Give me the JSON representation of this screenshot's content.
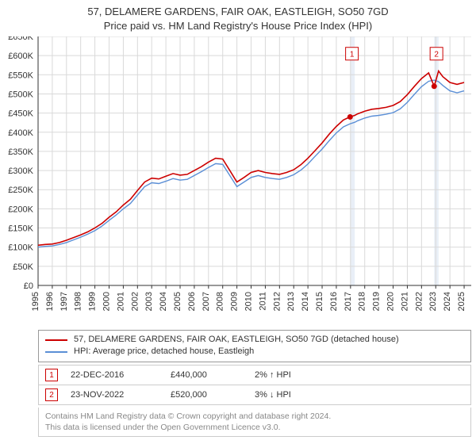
{
  "title_line1": "57, DELAMERE GARDENS, FAIR OAK, EASTLEIGH, SO50 7GD",
  "title_line2": "Price paid vs. HM Land Registry's House Price Index (HPI)",
  "chart": {
    "type": "line",
    "background_color": "#ffffff",
    "plot_background_color": "#ffffff",
    "grid_color": "#d9d9d9",
    "grid_on": true,
    "axis_line_color": "#333333",
    "x": {
      "lim": [
        1995,
        2025.5
      ],
      "ticks": [
        1995,
        1996,
        1997,
        1998,
        1999,
        2000,
        2001,
        2002,
        2003,
        2004,
        2005,
        2006,
        2007,
        2008,
        2009,
        2010,
        2011,
        2012,
        2013,
        2014,
        2015,
        2016,
        2017,
        2018,
        2019,
        2020,
        2021,
        2022,
        2023,
        2024,
        2025
      ],
      "tick_labels": [
        "1995",
        "1996",
        "1997",
        "1998",
        "1999",
        "2000",
        "2001",
        "2002",
        "2003",
        "2004",
        "2005",
        "2006",
        "2007",
        "2008",
        "2009",
        "2010",
        "2011",
        "2012",
        "2013",
        "2014",
        "2015",
        "2016",
        "2017",
        "2018",
        "2019",
        "2020",
        "2021",
        "2022",
        "2023",
        "2024",
        "2025"
      ],
      "tick_rotation": -90,
      "label_fontsize": 11
    },
    "y": {
      "lim": [
        0,
        650000
      ],
      "ticks": [
        0,
        50000,
        100000,
        150000,
        200000,
        250000,
        300000,
        350000,
        400000,
        450000,
        500000,
        550000,
        600000,
        650000
      ],
      "tick_labels": [
        "£0",
        "£50K",
        "£100K",
        "£150K",
        "£200K",
        "£250K",
        "£300K",
        "£350K",
        "£400K",
        "£450K",
        "£500K",
        "£550K",
        "£600K",
        "£650K"
      ],
      "label_fontsize": 11
    },
    "vbands": [
      {
        "from": 2016.97,
        "to": 2017.3,
        "color": "#e9eff7"
      },
      {
        "from": 2022.89,
        "to": 2023.2,
        "color": "#e9eff7"
      }
    ],
    "series": [
      {
        "name": "57, DELAMERE GARDENS, FAIR OAK, EASTLEIGH, SO50 7GD (detached house)",
        "color": "#cc0000",
        "line_width": 1.6,
        "x": [
          1995.0,
          1995.5,
          1996.0,
          1996.5,
          1997.0,
          1997.5,
          1998.0,
          1998.5,
          1999.0,
          1999.5,
          2000.0,
          2000.5,
          2001.0,
          2001.5,
          2002.0,
          2002.5,
          2003.0,
          2003.5,
          2004.0,
          2004.5,
          2005.0,
          2005.5,
          2006.0,
          2006.5,
          2007.0,
          2007.5,
          2008.0,
          2008.5,
          2009.0,
          2009.5,
          2010.0,
          2010.5,
          2011.0,
          2011.5,
          2012.0,
          2012.5,
          2013.0,
          2013.5,
          2014.0,
          2014.5,
          2015.0,
          2015.5,
          2016.0,
          2016.5,
          2016.97,
          2017.3,
          2017.5,
          2018.0,
          2018.5,
          2019.0,
          2019.5,
          2020.0,
          2020.5,
          2021.0,
          2021.5,
          2022.0,
          2022.5,
          2022.89,
          2023.2,
          2023.5,
          2024.0,
          2024.5,
          2025.0
        ],
        "y": [
          105000,
          107000,
          108000,
          112000,
          118000,
          125000,
          132000,
          140000,
          150000,
          162000,
          178000,
          192000,
          210000,
          225000,
          248000,
          270000,
          280000,
          278000,
          285000,
          292000,
          288000,
          290000,
          300000,
          310000,
          322000,
          332000,
          330000,
          300000,
          270000,
          282000,
          295000,
          300000,
          295000,
          292000,
          290000,
          295000,
          302000,
          315000,
          332000,
          352000,
          372000,
          395000,
          415000,
          432000,
          440000,
          444000,
          448000,
          455000,
          460000,
          462000,
          465000,
          470000,
          480000,
          498000,
          520000,
          540000,
          555000,
          520000,
          560000,
          545000,
          530000,
          525000,
          530000
        ]
      },
      {
        "name": "HPI: Average price, detached house, Eastleigh",
        "color": "#5b8fd6",
        "line_width": 1.4,
        "x": [
          1995.0,
          1995.5,
          1996.0,
          1996.5,
          1997.0,
          1997.5,
          1998.0,
          1998.5,
          1999.0,
          1999.5,
          2000.0,
          2000.5,
          2001.0,
          2001.5,
          2002.0,
          2002.5,
          2003.0,
          2003.5,
          2004.0,
          2004.5,
          2005.0,
          2005.5,
          2006.0,
          2006.5,
          2007.0,
          2007.5,
          2008.0,
          2008.5,
          2009.0,
          2009.5,
          2010.0,
          2010.5,
          2011.0,
          2011.5,
          2012.0,
          2012.5,
          2013.0,
          2013.5,
          2014.0,
          2014.5,
          2015.0,
          2015.5,
          2016.0,
          2016.5,
          2016.97,
          2017.3,
          2017.5,
          2018.0,
          2018.5,
          2019.0,
          2019.5,
          2020.0,
          2020.5,
          2021.0,
          2021.5,
          2022.0,
          2022.5,
          2022.89,
          2023.2,
          2023.5,
          2024.0,
          2024.5,
          2025.0
        ],
        "y": [
          100000,
          102000,
          103000,
          107000,
          112000,
          119000,
          126000,
          134000,
          143000,
          155000,
          170000,
          184000,
          200000,
          214000,
          236000,
          258000,
          268000,
          266000,
          272000,
          279000,
          275000,
          277000,
          287000,
          297000,
          308000,
          318000,
          316000,
          287000,
          258000,
          270000,
          282000,
          287000,
          282000,
          279000,
          277000,
          282000,
          289000,
          301000,
          317000,
          337000,
          356000,
          378000,
          398000,
          414000,
          422000,
          426000,
          430000,
          437000,
          442000,
          444000,
          447000,
          451000,
          461000,
          478000,
          499000,
          519000,
          533000,
          536000,
          532000,
          522000,
          508000,
          503000,
          508000
        ]
      }
    ],
    "legend": {
      "position": "below-plot",
      "border_color": "#999999",
      "fontsize": 11
    },
    "markers": [
      {
        "id": "1",
        "chart_x": 2016.97,
        "chart_y": 440000,
        "dot_color": "#cc0000",
        "date": "22-DEC-2016",
        "price": "£440,000",
        "delta_pct": "2%",
        "delta_dir": "up",
        "delta_vs": "HPI",
        "badge_x": 2017.1,
        "badge_y": 605000
      },
      {
        "id": "2",
        "chart_x": 2022.89,
        "chart_y": 520000,
        "dot_color": "#cc0000",
        "date": "23-NOV-2022",
        "price": "£520,000",
        "delta_pct": "3%",
        "delta_dir": "down",
        "delta_vs": "HPI",
        "badge_x": 2023.05,
        "badge_y": 605000
      }
    ],
    "marker_badge": {
      "border_color": "#cc0000",
      "text_color": "#cc0000",
      "background": "#ffffff",
      "fontsize": 10
    }
  },
  "attribution": {
    "line1": "Contains HM Land Registry data © Crown copyright and database right 2024.",
    "line2": "This data is licensed under the Open Government Licence v3.0.",
    "color": "#888888",
    "fontsize": 10.5
  },
  "arrows": {
    "up": "↑",
    "down": "↓"
  }
}
